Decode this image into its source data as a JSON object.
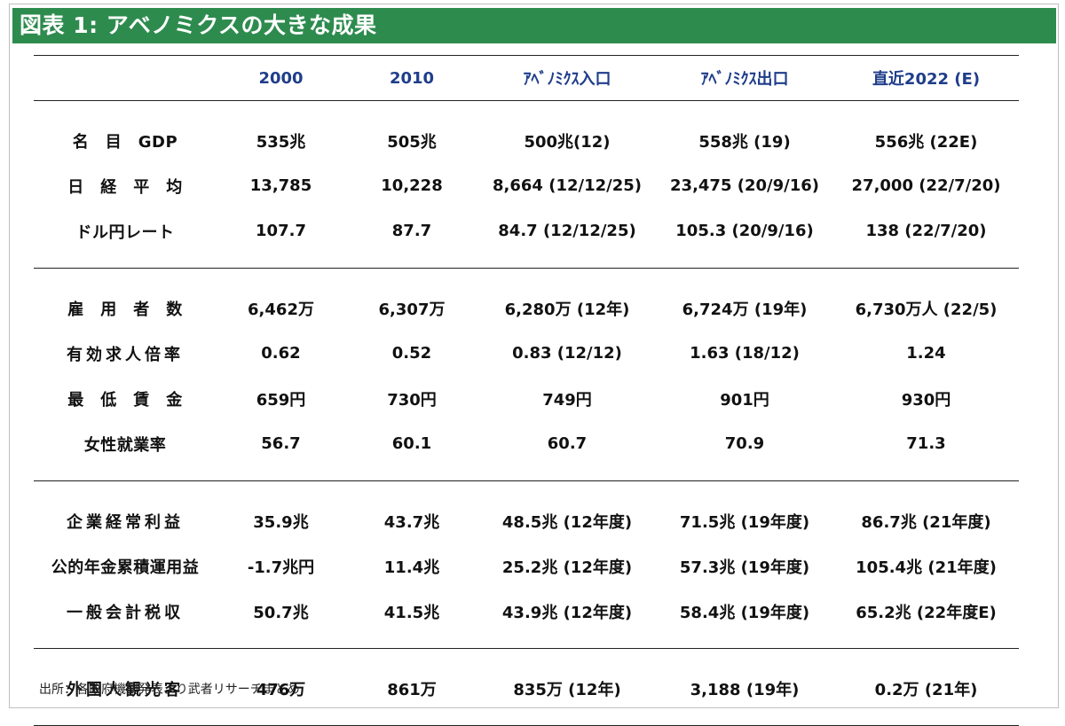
{
  "title": "図表 1: アベノミクスの大きな成果",
  "table": {
    "columns": [
      "",
      "2000",
      "2010",
      "ｱﾍﾞﾉﾐｸｽ入口",
      "ｱﾍﾞﾉﾐｸｽ出口",
      "直近2022 (E)"
    ],
    "groups": [
      {
        "rows": [
          {
            "label": "名　目　GDP",
            "values": [
              "535兆",
              "505兆",
              "500兆(12)",
              "558兆 (19)",
              "556兆 (22E)"
            ]
          },
          {
            "label": "日　経　平　均",
            "values": [
              "13,785",
              "10,228",
              "8,664 (12/12/25)",
              "23,475 (20/9/16)",
              "27,000 (22/7/20)"
            ]
          },
          {
            "label": "ドル円レート",
            "values": [
              "107.7",
              "87.7",
              "84.7 (12/12/25)",
              "105.3 (20/9/16)",
              "138 (22/7/20)"
            ]
          }
        ]
      },
      {
        "rows": [
          {
            "label": "雇　用　者　数",
            "values": [
              "6,462万",
              "6,307万",
              "6,280万 (12年)",
              "6,724万 (19年)",
              "6,730万人 (22/5)"
            ]
          },
          {
            "label": "有効求人倍率",
            "values": [
              "0.62",
              "0.52",
              "0.83 (12/12)",
              "1.63 (18/12)",
              "1.24"
            ]
          },
          {
            "label": "最　低　賃　金",
            "values": [
              "659円",
              "730円",
              "749円",
              "901円",
              "930円"
            ]
          },
          {
            "label": "女性就業率",
            "values": [
              "56.7",
              "60.1",
              "60.7",
              "70.9",
              "71.3"
            ]
          }
        ]
      },
      {
        "rows": [
          {
            "label": "企業経常利益",
            "values": [
              "35.9兆",
              "43.7兆",
              "48.5兆 (12年度)",
              "71.5兆 (19年度)",
              "86.7兆 (21年度)"
            ]
          },
          {
            "label": "公的年金累積運用益",
            "values": [
              "-1.7兆円",
              "11.4兆",
              "25.2兆 (12年度)",
              "57.3兆 (19年度)",
              "105.4兆 (21年度)"
            ]
          },
          {
            "label": "一般会計税収",
            "values": [
              "50.7兆",
              "41.5兆",
              "43.9兆 (12年度)",
              "58.4兆 (19年度)",
              "65.2兆 (22年度E)"
            ]
          }
        ]
      },
      {
        "rows": [
          {
            "label": "外国人観光客",
            "values": [
              "476万",
              "861万",
              "835万 (12年)",
              "3,188 (19年)",
              "0.2万 (21年)"
            ]
          }
        ]
      }
    ]
  },
  "source": "出所：各政府機関発表より武者リサーチまとめ",
  "colors": {
    "title_bg": "#2e8b4e",
    "header_text": "#1f3d8a"
  }
}
